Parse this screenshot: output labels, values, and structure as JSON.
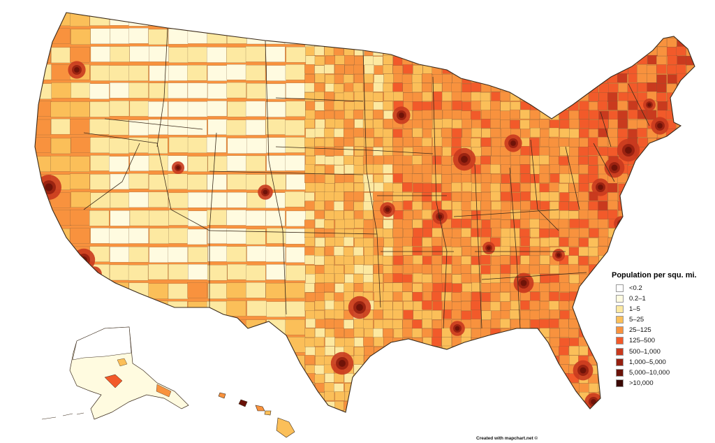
{
  "legend": {
    "title": "Population per squ. mi.",
    "items": [
      {
        "label": "<0.2",
        "color": "#ffffff"
      },
      {
        "label": "0.2–1",
        "color": "#fffbe0"
      },
      {
        "label": "1–5",
        "color": "#fde9a1"
      },
      {
        "label": "5–25",
        "color": "#fbbf59"
      },
      {
        "label": "25–125",
        "color": "#f8923e"
      },
      {
        "label": "125–500",
        "color": "#f25a2a"
      },
      {
        "label": "500–1,000",
        "color": "#c93a1e"
      },
      {
        "label": "1,000–5,000",
        "color": "#962010"
      },
      {
        "label": "5,000–10,000",
        "color": "#6a1208"
      },
      {
        "label": ">10,000",
        "color": "#3a0803"
      }
    ]
  },
  "credit": "Created with mapchart.net ©",
  "map": {
    "regions": [
      "contiguous-us",
      "alaska",
      "hawaii"
    ],
    "border_color": "#3a2a1a"
  }
}
